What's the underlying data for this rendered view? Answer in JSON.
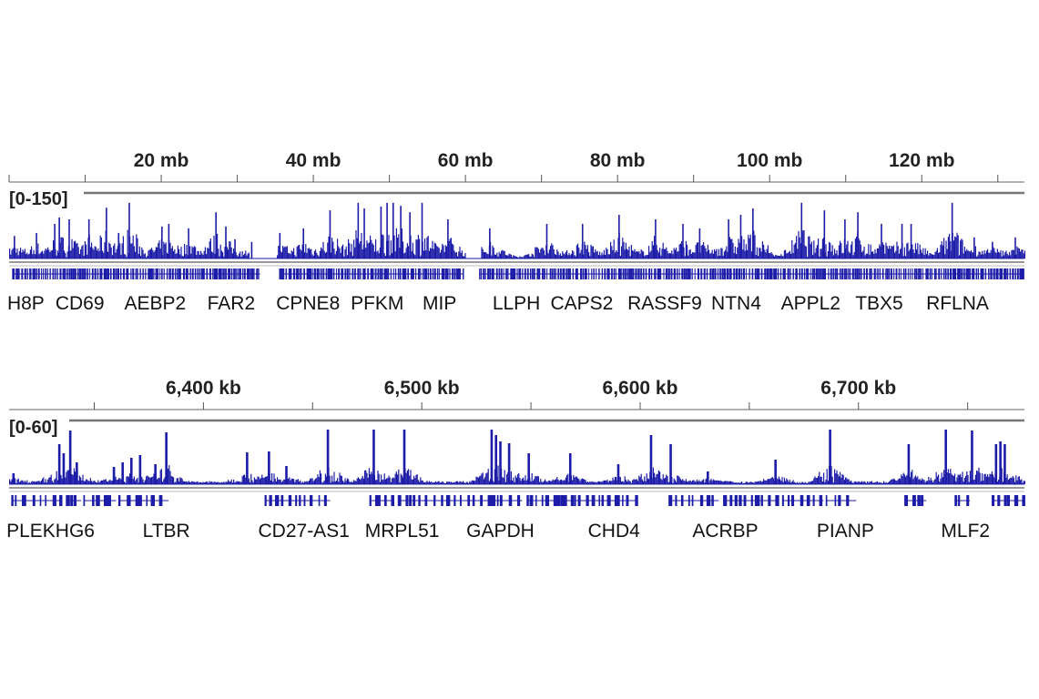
{
  "colors": {
    "signal": "#1c1ca8",
    "ruler": "#8a8a8a",
    "text": "#222222"
  },
  "chart_data": [
    {
      "type": "bar",
      "panel": "chromosome",
      "unit": "mb",
      "xlim": [
        0,
        133.5
      ],
      "ylim": [
        0,
        150
      ],
      "range_label": "[0-150]",
      "ticks": [
        {
          "value": 20,
          "label": "20 mb"
        },
        {
          "value": 40,
          "label": "40 mb"
        },
        {
          "value": 60,
          "label": "60 mb"
        },
        {
          "value": 80,
          "label": "80 mb"
        },
        {
          "value": 100,
          "label": "100 mb"
        },
        {
          "value": 120,
          "label": "120 mb"
        }
      ],
      "minor_tick_step": 10,
      "peaks": [
        [
          0.7,
          60
        ],
        [
          3.6,
          68
        ],
        [
          6.0,
          92
        ],
        [
          6.6,
          109
        ],
        [
          7.9,
          104
        ],
        [
          10.5,
          104
        ],
        [
          12.8,
          135
        ],
        [
          14.4,
          68
        ],
        [
          15.8,
          148
        ],
        [
          20.1,
          85
        ],
        [
          21.0,
          92
        ],
        [
          23.6,
          80
        ],
        [
          27.2,
          123
        ],
        [
          28.5,
          85
        ],
        [
          29.7,
          51
        ],
        [
          31.9,
          44
        ],
        [
          35.6,
          68
        ],
        [
          38.7,
          80
        ],
        [
          42.2,
          128
        ],
        [
          45.9,
          148
        ],
        [
          46.7,
          133
        ],
        [
          48.9,
          138
        ],
        [
          49.7,
          148
        ],
        [
          50.5,
          148
        ],
        [
          51.5,
          140
        ],
        [
          52.7,
          123
        ],
        [
          54.3,
          148
        ],
        [
          57.7,
          104
        ],
        [
          63.2,
          80
        ],
        [
          70.7,
          92
        ],
        [
          75.4,
          92
        ],
        [
          80.2,
          116
        ],
        [
          85.0,
          104
        ],
        [
          88.6,
          92
        ],
        [
          90.8,
          80
        ],
        [
          94.6,
          104
        ],
        [
          96.2,
          116
        ],
        [
          97.8,
          133
        ],
        [
          104.2,
          148
        ],
        [
          107.2,
          128
        ],
        [
          109.9,
          104
        ],
        [
          111.6,
          123
        ],
        [
          114.7,
          92
        ],
        [
          117.4,
          92
        ],
        [
          118.6,
          92
        ],
        [
          124.0,
          148
        ],
        [
          126.9,
          56
        ],
        [
          129.3,
          44
        ],
        [
          132.3,
          56
        ]
      ],
      "signal_gaps": [
        [
          31.5,
          35.2
        ],
        [
          60.0,
          62.0
        ]
      ],
      "genes": [
        [
          0.4,
          33.0
        ],
        [
          35.5,
          59.8
        ],
        [
          61.8,
          133.3
        ]
      ],
      "gene_labels": [
        {
          "name": "H8P",
          "pos": 2.2
        },
        {
          "name": "CD69",
          "pos": 9.3
        },
        {
          "name": "AEBP2",
          "pos": 19.2
        },
        {
          "name": "FAR2",
          "pos": 29.2
        },
        {
          "name": "CPNE8",
          "pos": 39.3
        },
        {
          "name": "PFKM",
          "pos": 48.4
        },
        {
          "name": "MIP",
          "pos": 56.6
        },
        {
          "name": "LLPH",
          "pos": 66.7
        },
        {
          "name": "CAPS2",
          "pos": 75.3
        },
        {
          "name": "RASSF9",
          "pos": 86.2
        },
        {
          "name": "NTN4",
          "pos": 95.6
        },
        {
          "name": "APPL2",
          "pos": 105.4
        },
        {
          "name": "TBX5",
          "pos": 114.4
        },
        {
          "name": "RFLNA",
          "pos": 124.7
        }
      ]
    },
    {
      "type": "bar",
      "panel": "locus",
      "unit": "kb",
      "xlim": [
        6311,
        6776
      ],
      "ylim": [
        0,
        60
      ],
      "range_label": "[0-60]",
      "ticks": [
        {
          "value": 6400,
          "label": "6,400 kb"
        },
        {
          "value": 6500,
          "label": "6,500 kb"
        },
        {
          "value": 6600,
          "label": "6,600 kb"
        },
        {
          "value": 6700,
          "label": "6,700 kb"
        }
      ],
      "minor_tick_step": 50,
      "peaks": [
        [
          6313,
          12
        ],
        [
          6334,
          44
        ],
        [
          6336,
          34
        ],
        [
          6339,
          59
        ],
        [
          6342,
          24
        ],
        [
          6359,
          19
        ],
        [
          6363,
          24
        ],
        [
          6367,
          29
        ],
        [
          6371,
          32
        ],
        [
          6378,
          22
        ],
        [
          6383,
          57
        ],
        [
          6420,
          35
        ],
        [
          6430,
          36
        ],
        [
          6438,
          20
        ],
        [
          6457,
          60
        ],
        [
          6478,
          60
        ],
        [
          6492,
          60
        ],
        [
          6532,
          60
        ],
        [
          6534,
          54
        ],
        [
          6536,
          47
        ],
        [
          6540,
          45
        ],
        [
          6549,
          34
        ],
        [
          6568,
          34
        ],
        [
          6590,
          22
        ],
        [
          6605,
          54
        ],
        [
          6614,
          44
        ],
        [
          6631,
          14
        ],
        [
          6662,
          27
        ],
        [
          6687,
          60
        ],
        [
          6723,
          44
        ],
        [
          6740,
          60
        ],
        [
          6752,
          59
        ],
        [
          6763,
          44
        ],
        [
          6765,
          47
        ],
        [
          6767,
          44
        ]
      ],
      "signal_gaps": [],
      "genes": [
        [
          6312,
          6335
        ],
        [
          6337,
          6344
        ],
        [
          6345,
          6360
        ],
        [
          6361,
          6384
        ],
        [
          6428,
          6458
        ],
        [
          6476,
          6487
        ],
        [
          6489,
          6532
        ],
        [
          6532,
          6546
        ],
        [
          6548,
          6599
        ],
        [
          6613,
          6636
        ],
        [
          6638,
          6663
        ],
        [
          6665,
          6684
        ],
        [
          6685,
          6699
        ],
        [
          6721,
          6731
        ],
        [
          6744,
          6751
        ],
        [
          6761,
          6776
        ]
      ],
      "gene_labels": [
        {
          "name": "PLEKHG6",
          "pos": 6330
        },
        {
          "name": "LTBR",
          "pos": 6383
        },
        {
          "name": "CD27-AS1",
          "pos": 6446
        },
        {
          "name": "MRPL51",
          "pos": 6491
        },
        {
          "name": "GAPDH",
          "pos": 6536
        },
        {
          "name": "CHD4",
          "pos": 6588
        },
        {
          "name": "ACRBP",
          "pos": 6639
        },
        {
          "name": "PIANP",
          "pos": 6694
        },
        {
          "name": "MLF2",
          "pos": 6749
        }
      ]
    }
  ]
}
